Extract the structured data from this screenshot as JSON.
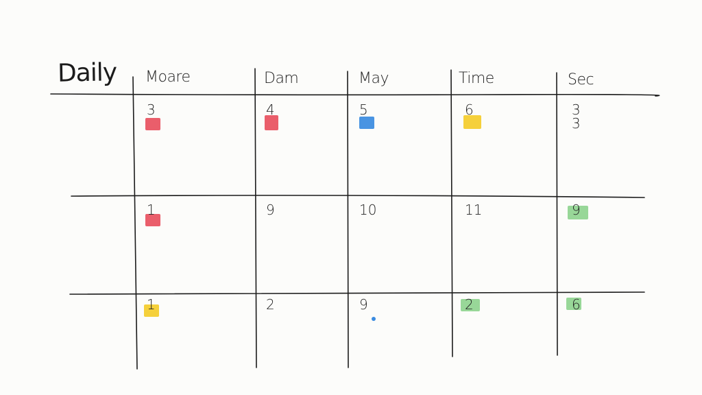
{
  "title": "Daily",
  "columns": [
    "Moare",
    "Dam",
    "May",
    "Time",
    "Sec"
  ],
  "colors": {
    "red": "#e8505e",
    "blue": "#3a8be0",
    "yellow": "#f4cc2a",
    "green": "#8fd48f",
    "ink": "#1b1b1b"
  },
  "rows": [
    {
      "cells": [
        {
          "number": "3",
          "marker": "red"
        },
        {
          "number": "4",
          "marker": "red"
        },
        {
          "number": "5",
          "marker": "blue"
        },
        {
          "number": "6",
          "marker": "yellow"
        },
        {
          "number": "3\n3",
          "marker": null
        }
      ]
    },
    {
      "cells": [
        {
          "number": "1",
          "marker": "red"
        },
        {
          "number": "9",
          "marker": null
        },
        {
          "number": "10",
          "marker": null
        },
        {
          "number": "11",
          "marker": null
        },
        {
          "number": "9",
          "marker": "green"
        }
      ]
    },
    {
      "cells": [
        {
          "number": "1",
          "marker": "yellow"
        },
        {
          "number": "2",
          "marker": null
        },
        {
          "number": "9",
          "marker": null,
          "dot": "blue"
        },
        {
          "number": "2",
          "marker": "green"
        },
        {
          "number": "6",
          "marker": "green"
        }
      ]
    }
  ]
}
